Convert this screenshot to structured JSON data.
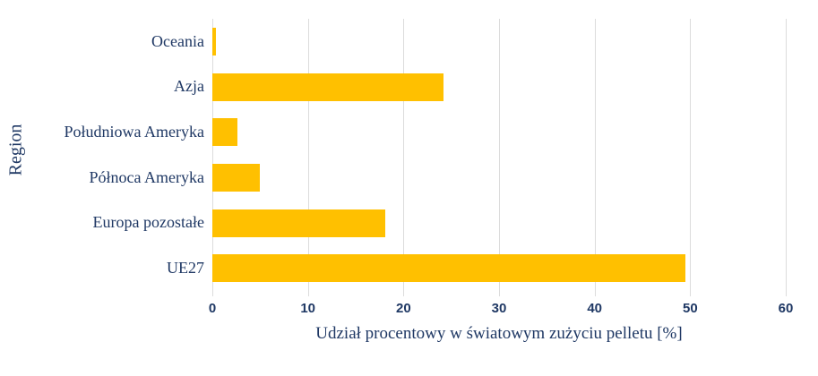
{
  "chart_data": {
    "type": "bar",
    "orientation": "horizontal",
    "title": "",
    "categories": [
      "Oceania",
      "Azja",
      "Południowa Ameryka",
      "Północa Ameryka",
      "Europa pozostałe",
      "UE27"
    ],
    "values": [
      0.4,
      24.2,
      2.6,
      5.0,
      18.1,
      49.5
    ],
    "series": [
      {
        "name": "Udział procentowy w światowym zużyciu pelletu",
        "values": [
          0.4,
          24.2,
          2.6,
          5.0,
          18.1,
          49.5
        ]
      }
    ],
    "xlabel": "Udział procentowy w światowym zużyciu pelletu [%]",
    "ylabel": "Region",
    "xlim": [
      0,
      60
    ],
    "xticks": [
      0,
      10,
      20,
      30,
      40,
      50,
      60
    ],
    "grid": "vertical-only",
    "legend": "none",
    "bar_color": "#ffc000",
    "text_color": "#1f3864",
    "gridline_color": "#dcdcdc",
    "background_color": "#ffffff"
  }
}
